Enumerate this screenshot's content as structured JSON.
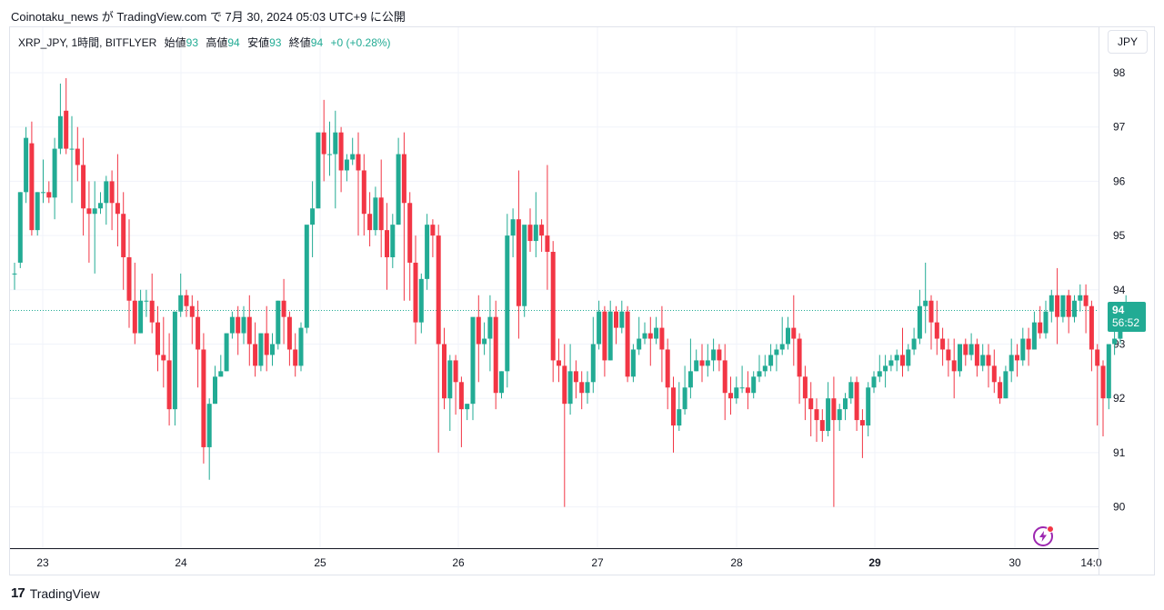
{
  "header": {
    "publish_text": "Coinotaku_news が TradingView.com で 7月 30, 2024 05:03 UTC+9 に公開"
  },
  "legend": {
    "symbol": "XRP_JPY, 1時間, BITFLYER",
    "open_label": "始値",
    "open_value": "93",
    "high_label": "高値",
    "high_value": "94",
    "low_label": "安値",
    "low_value": "93",
    "close_label": "終値",
    "close_value": "94",
    "change": "+0 (+0.28%)"
  },
  "price_scale": {
    "currency_button": "JPY",
    "last_price": "94",
    "countdown": "56:52"
  },
  "footer": {
    "logo_mark": "17",
    "logo_text": "TradingView"
  },
  "icons": {
    "bolt": "lightning-bolt-icon",
    "logo": "tradingview-logo-icon"
  },
  "colors": {
    "up": "#22ab94",
    "down": "#f23645",
    "accent": "#9c27b0"
  },
  "chart_data": {
    "type": "candlestick",
    "title": "XRP_JPY, 1時間, BITFLYER",
    "ylim": [
      89.4,
      98.5
    ],
    "y_ticks": [
      90,
      91,
      92,
      93,
      94,
      95,
      96,
      97,
      98
    ],
    "x_tick_labels": [
      "23",
      "24",
      "25",
      "26",
      "27",
      "28",
      "29",
      "30",
      "14:0"
    ],
    "last_price": 93.62,
    "candles": [
      [
        94.3,
        94.5,
        94.3,
        94.0
      ],
      [
        94.5,
        95.8,
        95.8,
        94.4
      ],
      [
        95.8,
        97.0,
        96.8,
        95.6
      ],
      [
        96.7,
        97.1,
        95.1,
        95.0
      ],
      [
        95.1,
        95.8,
        95.8,
        95.0
      ],
      [
        95.8,
        96.4,
        95.8,
        95.6
      ],
      [
        95.8,
        96.0,
        95.7,
        95.6
      ],
      [
        95.7,
        96.8,
        96.6,
        95.3
      ],
      [
        96.6,
        97.8,
        97.2,
        96.5
      ],
      [
        97.3,
        97.9,
        96.6,
        96.5
      ],
      [
        96.6,
        97.2,
        96.6,
        95.6
      ],
      [
        96.6,
        97.0,
        96.3,
        96.0
      ],
      [
        96.3,
        96.8,
        95.5,
        95.0
      ],
      [
        95.5,
        96.0,
        95.4,
        94.5
      ],
      [
        95.4,
        96.0,
        95.5,
        94.3
      ],
      [
        95.5,
        95.8,
        95.6,
        95.4
      ],
      [
        95.6,
        96.1,
        96.0,
        95.2
      ],
      [
        96.0,
        96.2,
        95.6,
        95.1
      ],
      [
        95.6,
        96.5,
        95.4,
        94.8
      ],
      [
        95.4,
        95.8,
        94.6,
        94.0
      ],
      [
        94.6,
        95.3,
        93.8,
        93.3
      ],
      [
        93.8,
        94.5,
        93.2,
        93.0
      ],
      [
        93.2,
        94.0,
        93.8,
        93.2
      ],
      [
        93.8,
        94.0,
        93.8,
        93.5
      ],
      [
        93.8,
        94.3,
        93.4,
        93.2
      ],
      [
        93.4,
        93.7,
        92.8,
        92.5
      ],
      [
        92.8,
        93.5,
        92.7,
        92.2
      ],
      [
        92.7,
        93.2,
        91.8,
        91.5
      ],
      [
        91.8,
        93.5,
        93.6,
        91.5
      ],
      [
        93.6,
        94.3,
        93.9,
        93.5
      ],
      [
        93.9,
        94.0,
        93.7,
        93.5
      ],
      [
        93.7,
        93.9,
        93.5,
        93.0
      ],
      [
        93.5,
        93.8,
        92.9,
        92.2
      ],
      [
        92.9,
        93.2,
        91.1,
        90.8
      ],
      [
        91.1,
        92.0,
        91.9,
        90.5
      ],
      [
        91.9,
        92.6,
        92.4,
        91.9
      ],
      [
        92.4,
        92.8,
        92.5,
        92.4
      ],
      [
        92.5,
        93.2,
        93.2,
        92.5
      ],
      [
        93.2,
        93.6,
        93.5,
        93.1
      ],
      [
        93.5,
        93.7,
        93.2,
        92.8
      ],
      [
        93.2,
        93.7,
        93.5,
        93.0
      ],
      [
        93.5,
        93.9,
        93.0,
        92.6
      ],
      [
        93.0,
        93.4,
        92.6,
        92.4
      ],
      [
        92.6,
        93.2,
        93.2,
        92.5
      ],
      [
        93.2,
        93.7,
        92.8,
        92.5
      ],
      [
        92.8,
        93.2,
        93.0,
        92.6
      ],
      [
        93.0,
        93.8,
        93.8,
        92.9
      ],
      [
        93.8,
        94.2,
        93.5,
        93.0
      ],
      [
        93.5,
        93.6,
        92.9,
        92.6
      ],
      [
        92.9,
        93.2,
        92.6,
        92.4
      ],
      [
        92.6,
        93.4,
        93.3,
        92.5
      ],
      [
        93.3,
        94.8,
        95.2,
        93.2
      ],
      [
        95.2,
        96.0,
        95.5,
        94.6
      ],
      [
        95.5,
        96.9,
        96.9,
        95.5
      ],
      [
        96.9,
        97.5,
        96.5,
        96.0
      ],
      [
        96.5,
        97.1,
        96.5,
        96.1
      ],
      [
        96.5,
        97.3,
        96.9,
        95.5
      ],
      [
        96.9,
        97.0,
        96.2,
        95.8
      ],
      [
        96.2,
        96.5,
        96.4,
        96.0
      ],
      [
        96.4,
        96.8,
        96.5,
        96.3
      ],
      [
        96.5,
        96.9,
        96.2,
        95.0
      ],
      [
        96.2,
        96.5,
        95.4,
        95.0
      ],
      [
        95.4,
        95.8,
        95.1,
        94.8
      ],
      [
        95.1,
        95.9,
        95.7,
        95.0
      ],
      [
        95.7,
        96.4,
        95.1,
        94.6
      ],
      [
        95.1,
        95.6,
        94.6,
        94.0
      ],
      [
        94.6,
        95.4,
        95.2,
        94.4
      ],
      [
        95.2,
        96.8,
        96.5,
        95.2
      ],
      [
        96.5,
        96.9,
        95.6,
        93.8
      ],
      [
        95.6,
        95.8,
        94.5,
        93.8
      ],
      [
        94.5,
        95.0,
        93.4,
        93.0
      ],
      [
        93.4,
        94.3,
        94.2,
        93.2
      ],
      [
        94.2,
        95.4,
        95.2,
        94.0
      ],
      [
        95.2,
        95.3,
        95.0,
        94.6
      ],
      [
        95.0,
        95.2,
        93.0,
        91.0
      ],
      [
        93.0,
        93.3,
        92.0,
        91.8
      ],
      [
        92.0,
        92.8,
        92.7,
        91.4
      ],
      [
        92.7,
        92.8,
        92.3,
        91.7
      ],
      [
        92.3,
        92.4,
        91.8,
        91.1
      ],
      [
        91.8,
        91.9,
        91.9,
        91.6
      ],
      [
        91.9,
        93.4,
        93.5,
        91.6
      ],
      [
        93.5,
        93.9,
        93.0,
        92.3
      ],
      [
        93.0,
        93.4,
        93.1,
        92.8
      ],
      [
        93.1,
        93.9,
        93.5,
        92.5
      ],
      [
        93.5,
        93.8,
        92.1,
        91.8
      ],
      [
        92.1,
        92.5,
        92.5,
        92.0
      ],
      [
        92.5,
        95.4,
        95.0,
        92.2
      ],
      [
        95.0,
        95.5,
        95.3,
        94.6
      ],
      [
        95.3,
        96.2,
        93.7,
        93.1
      ],
      [
        93.7,
        95.0,
        95.2,
        93.5
      ],
      [
        95.2,
        95.5,
        94.9,
        94.7
      ],
      [
        94.9,
        95.8,
        95.2,
        94.6
      ],
      [
        95.2,
        95.3,
        95.0,
        94.7
      ],
      [
        95.0,
        96.3,
        94.7,
        94.0
      ],
      [
        94.7,
        94.9,
        92.7,
        92.3
      ],
      [
        92.7,
        93.1,
        92.6,
        92.3
      ],
      [
        92.6,
        93.0,
        91.9,
        90.0
      ],
      [
        91.9,
        93.0,
        92.5,
        91.7
      ],
      [
        92.5,
        92.7,
        92.3,
        92.0
      ],
      [
        92.3,
        92.5,
        92.1,
        91.8
      ],
      [
        92.1,
        92.5,
        92.3,
        91.9
      ],
      [
        92.3,
        93.5,
        93.0,
        92.1
      ],
      [
        93.0,
        93.8,
        93.6,
        92.9
      ],
      [
        93.6,
        93.7,
        92.7,
        92.4
      ],
      [
        92.7,
        93.8,
        93.6,
        92.7
      ],
      [
        93.6,
        93.7,
        93.3,
        93.0
      ],
      [
        93.3,
        93.8,
        93.6,
        93.2
      ],
      [
        93.6,
        93.7,
        92.4,
        92.3
      ],
      [
        92.4,
        93.0,
        92.9,
        92.3
      ],
      [
        92.9,
        93.5,
        93.1,
        92.8
      ],
      [
        93.1,
        93.4,
        93.2,
        93.0
      ],
      [
        93.2,
        93.5,
        93.1,
        92.6
      ],
      [
        93.1,
        93.5,
        93.3,
        93.0
      ],
      [
        93.3,
        93.7,
        92.9,
        92.3
      ],
      [
        92.9,
        93.1,
        92.2,
        91.8
      ],
      [
        92.2,
        92.4,
        91.5,
        91.0
      ],
      [
        91.5,
        92.3,
        91.8,
        91.4
      ],
      [
        91.8,
        92.6,
        92.2,
        91.7
      ],
      [
        92.2,
        93.1,
        92.5,
        92.0
      ],
      [
        92.5,
        92.9,
        92.7,
        92.5
      ],
      [
        92.7,
        93.0,
        92.6,
        92.3
      ],
      [
        92.6,
        93.0,
        92.7,
        92.4
      ],
      [
        92.7,
        93.1,
        92.9,
        92.5
      ],
      [
        92.9,
        93.0,
        92.7,
        92.5
      ],
      [
        92.7,
        93.0,
        92.1,
        91.6
      ],
      [
        92.1,
        92.4,
        92.0,
        91.7
      ],
      [
        92.0,
        92.4,
        92.2,
        91.9
      ],
      [
        92.2,
        92.6,
        92.2,
        92.1
      ],
      [
        92.2,
        92.5,
        92.1,
        91.8
      ],
      [
        92.1,
        92.5,
        92.4,
        92.0
      ],
      [
        92.4,
        92.8,
        92.5,
        92.3
      ],
      [
        92.5,
        92.8,
        92.6,
        92.4
      ],
      [
        92.6,
        93.0,
        92.8,
        92.5
      ],
      [
        92.8,
        93.0,
        92.9,
        92.5
      ],
      [
        92.9,
        93.5,
        93.0,
        92.8
      ],
      [
        93.0,
        93.5,
        93.3,
        92.9
      ],
      [
        93.3,
        93.9,
        93.1,
        92.6
      ],
      [
        93.1,
        93.2,
        92.4,
        91.9
      ],
      [
        92.4,
        92.6,
        92.0,
        91.6
      ],
      [
        92.0,
        92.3,
        91.8,
        91.3
      ],
      [
        91.8,
        92.0,
        91.6,
        91.2
      ],
      [
        91.6,
        91.8,
        91.4,
        91.2
      ],
      [
        91.4,
        92.3,
        92.0,
        91.3
      ],
      [
        92.0,
        92.4,
        91.6,
        90.0
      ],
      [
        91.6,
        91.9,
        91.8,
        91.4
      ],
      [
        91.8,
        92.1,
        92.0,
        91.6
      ],
      [
        92.0,
        92.4,
        92.3,
        91.9
      ],
      [
        92.3,
        92.4,
        91.6,
        91.4
      ],
      [
        91.6,
        91.8,
        91.5,
        90.9
      ],
      [
        91.5,
        92.3,
        92.2,
        91.3
      ],
      [
        92.2,
        92.5,
        92.4,
        92.1
      ],
      [
        92.4,
        92.8,
        92.5,
        92.3
      ],
      [
        92.5,
        92.8,
        92.6,
        92.2
      ],
      [
        92.6,
        92.8,
        92.7,
        92.5
      ],
      [
        92.7,
        92.9,
        92.8,
        92.5
      ],
      [
        92.8,
        93.3,
        92.6,
        92.4
      ],
      [
        92.6,
        93.0,
        92.9,
        92.5
      ],
      [
        92.9,
        93.3,
        93.1,
        92.8
      ],
      [
        93.1,
        94.0,
        93.7,
        93.0
      ],
      [
        93.7,
        94.5,
        93.8,
        93.2
      ],
      [
        93.8,
        93.9,
        93.4,
        92.9
      ],
      [
        93.4,
        93.8,
        93.1,
        92.8
      ],
      [
        93.1,
        93.3,
        92.9,
        92.6
      ],
      [
        92.9,
        93.1,
        92.7,
        92.4
      ],
      [
        92.7,
        93.1,
        92.5,
        92.0
      ],
      [
        92.5,
        93.0,
        93.0,
        92.4
      ],
      [
        93.0,
        93.1,
        92.8,
        92.6
      ],
      [
        92.8,
        93.2,
        93.0,
        92.7
      ],
      [
        93.0,
        93.1,
        92.6,
        92.4
      ],
      [
        92.6,
        93.0,
        92.8,
        92.5
      ],
      [
        92.8,
        93.0,
        92.6,
        92.2
      ],
      [
        92.6,
        92.9,
        92.3,
        92.1
      ],
      [
        92.3,
        92.4,
        92.0,
        91.9
      ],
      [
        92.0,
        92.6,
        92.5,
        92.0
      ],
      [
        92.5,
        93.1,
        92.8,
        92.3
      ],
      [
        92.8,
        93.0,
        92.7,
        92.4
      ],
      [
        92.7,
        93.3,
        93.1,
        92.6
      ],
      [
        93.1,
        93.3,
        92.9,
        92.6
      ],
      [
        92.9,
        93.6,
        93.4,
        92.9
      ],
      [
        93.4,
        93.7,
        93.2,
        93.1
      ],
      [
        93.2,
        93.8,
        93.6,
        93.1
      ],
      [
        93.6,
        94.0,
        93.9,
        93.4
      ],
      [
        93.9,
        94.4,
        93.5,
        93.0
      ],
      [
        93.5,
        93.8,
        93.9,
        93.4
      ],
      [
        93.9,
        94.0,
        93.5,
        93.2
      ],
      [
        93.5,
        93.9,
        93.8,
        93.4
      ],
      [
        93.8,
        94.1,
        93.9,
        93.6
      ],
      [
        93.9,
        94.1,
        93.7,
        93.2
      ],
      [
        93.7,
        93.8,
        92.9,
        92.5
      ],
      [
        92.9,
        93.0,
        92.6,
        91.5
      ],
      [
        92.6,
        92.7,
        92.0,
        91.3
      ],
      [
        92.0,
        93.0,
        93.0,
        91.8
      ],
      [
        93.0,
        93.3,
        93.1,
        92.8
      ],
      [
        93.1,
        93.5,
        93.4,
        93.0
      ],
      [
        93.4,
        93.9,
        93.6,
        93.3
      ]
    ]
  }
}
